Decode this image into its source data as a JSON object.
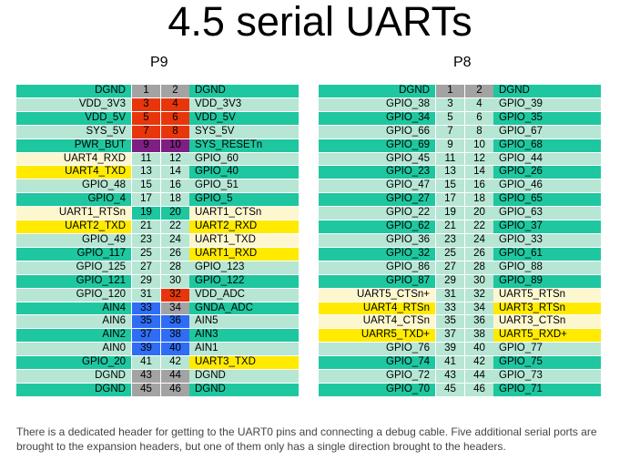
{
  "title": "4.5 serial UARTs",
  "headers": {
    "left": "P9",
    "right": "P8"
  },
  "colors": {
    "teal": "#1ec7a0",
    "mint": "#b7e6d4",
    "cream": "#fdf7cf",
    "yellow": "#ffea00",
    "gray": "#a3a3a3",
    "red": "#e8360c",
    "purple": "#7e1f84",
    "blue": "#2f6df5"
  },
  "p9": [
    {
      "l": "DGND",
      "a": "1",
      "b": "2",
      "r": "DGND",
      "lc": "teal",
      "ac": "gray",
      "bc": "gray",
      "rc": "teal"
    },
    {
      "l": "VDD_3V3",
      "a": "3",
      "b": "4",
      "r": "VDD_3V3",
      "lc": "mint",
      "ac": "red",
      "bc": "red",
      "rc": "mint"
    },
    {
      "l": "VDD_5V",
      "a": "5",
      "b": "6",
      "r": "VDD_5V",
      "lc": "teal",
      "ac": "red",
      "bc": "red",
      "rc": "teal"
    },
    {
      "l": "SYS_5V",
      "a": "7",
      "b": "8",
      "r": "SYS_5V",
      "lc": "mint",
      "ac": "red",
      "bc": "red",
      "rc": "mint"
    },
    {
      "l": "PWR_BUT",
      "a": "9",
      "b": "10",
      "r": "SYS_RESETn",
      "lc": "teal",
      "ac": "purple",
      "bc": "purple",
      "rc": "teal"
    },
    {
      "l": "UART4_RXD",
      "a": "11",
      "b": "12",
      "r": "GPIO_60",
      "lc": "cream",
      "ac": "mint",
      "bc": "mint",
      "rc": "mint"
    },
    {
      "l": "UART4_TXD",
      "a": "13",
      "b": "14",
      "r": "GPIO_40",
      "lc": "yellow",
      "ac": "mint",
      "bc": "mint",
      "rc": "teal"
    },
    {
      "l": "GPIO_48",
      "a": "15",
      "b": "16",
      "r": "GPIO_51",
      "lc": "mint",
      "ac": "mint",
      "bc": "mint",
      "rc": "mint"
    },
    {
      "l": "GPIO_4",
      "a": "17",
      "b": "18",
      "r": "GPIO_5",
      "lc": "teal",
      "ac": "mint",
      "bc": "mint",
      "rc": "teal"
    },
    {
      "l": "UART1_RTSn",
      "a": "19",
      "b": "20",
      "r": "UART1_CTSn",
      "lc": "cream",
      "ac": "teal",
      "bc": "teal",
      "rc": "cream"
    },
    {
      "l": "UART2_TXD",
      "a": "21",
      "b": "22",
      "r": "UART2_RXD",
      "lc": "yellow",
      "ac": "mint",
      "bc": "mint",
      "rc": "yellow"
    },
    {
      "l": "GPIO_49",
      "a": "23",
      "b": "24",
      "r": "UART1_TXD",
      "lc": "mint",
      "ac": "mint",
      "bc": "mint",
      "rc": "cream"
    },
    {
      "l": "GPIO_117",
      "a": "25",
      "b": "26",
      "r": "UART1_RXD",
      "lc": "teal",
      "ac": "mint",
      "bc": "mint",
      "rc": "yellow"
    },
    {
      "l": "GPIO_125",
      "a": "27",
      "b": "28",
      "r": "GPIO_123",
      "lc": "mint",
      "ac": "mint",
      "bc": "mint",
      "rc": "mint"
    },
    {
      "l": "GPIO_121",
      "a": "29",
      "b": "30",
      "r": "GPIO_122",
      "lc": "teal",
      "ac": "mint",
      "bc": "mint",
      "rc": "teal"
    },
    {
      "l": "GPIO_120",
      "a": "31",
      "b": "32",
      "r": "VDD_ADC",
      "lc": "mint",
      "ac": "mint",
      "bc": "red",
      "rc": "mint"
    },
    {
      "l": "AIN4",
      "a": "33",
      "b": "34",
      "r": "GNDA_ADC",
      "lc": "teal",
      "ac": "blue",
      "bc": "gray",
      "rc": "teal"
    },
    {
      "l": "AIN6",
      "a": "35",
      "b": "36",
      "r": "AIN5",
      "lc": "mint",
      "ac": "blue",
      "bc": "blue",
      "rc": "mint"
    },
    {
      "l": "AIN2",
      "a": "37",
      "b": "38",
      "r": "AIN3",
      "lc": "teal",
      "ac": "blue",
      "bc": "blue",
      "rc": "teal"
    },
    {
      "l": "AIN0",
      "a": "39",
      "b": "40",
      "r": "AIN1",
      "lc": "mint",
      "ac": "blue",
      "bc": "blue",
      "rc": "mint"
    },
    {
      "l": "GPIO_20",
      "a": "41",
      "b": "42",
      "r": "UART3_TXD",
      "lc": "teal",
      "ac": "mint",
      "bc": "mint",
      "rc": "yellow"
    },
    {
      "l": "DGND",
      "a": "43",
      "b": "44",
      "r": "DGND",
      "lc": "mint",
      "ac": "gray",
      "bc": "gray",
      "rc": "mint"
    },
    {
      "l": "DGND",
      "a": "45",
      "b": "46",
      "r": "DGND",
      "lc": "teal",
      "ac": "gray",
      "bc": "gray",
      "rc": "teal"
    }
  ],
  "p8": [
    {
      "l": "DGND",
      "a": "1",
      "b": "2",
      "r": "DGND",
      "lc": "teal",
      "ac": "gray",
      "bc": "gray",
      "rc": "teal"
    },
    {
      "l": "GPIO_38",
      "a": "3",
      "b": "4",
      "r": "GPIO_39",
      "lc": "mint",
      "ac": "mint",
      "bc": "mint",
      "rc": "mint"
    },
    {
      "l": "GPIO_34",
      "a": "5",
      "b": "6",
      "r": "GPIO_35",
      "lc": "teal",
      "ac": "mint",
      "bc": "mint",
      "rc": "teal"
    },
    {
      "l": "GPIO_66",
      "a": "7",
      "b": "8",
      "r": "GPIO_67",
      "lc": "mint",
      "ac": "mint",
      "bc": "mint",
      "rc": "mint"
    },
    {
      "l": "GPIO_69",
      "a": "9",
      "b": "10",
      "r": "GPIO_68",
      "lc": "teal",
      "ac": "mint",
      "bc": "mint",
      "rc": "teal"
    },
    {
      "l": "GPIO_45",
      "a": "11",
      "b": "12",
      "r": "GPIO_44",
      "lc": "mint",
      "ac": "mint",
      "bc": "mint",
      "rc": "mint"
    },
    {
      "l": "GPIO_23",
      "a": "13",
      "b": "14",
      "r": "GPIO_26",
      "lc": "teal",
      "ac": "mint",
      "bc": "mint",
      "rc": "teal"
    },
    {
      "l": "GPIO_47",
      "a": "15",
      "b": "16",
      "r": "GPIO_46",
      "lc": "mint",
      "ac": "mint",
      "bc": "mint",
      "rc": "mint"
    },
    {
      "l": "GPIO_27",
      "a": "17",
      "b": "18",
      "r": "GPIO_65",
      "lc": "teal",
      "ac": "mint",
      "bc": "mint",
      "rc": "teal"
    },
    {
      "l": "GPIO_22",
      "a": "19",
      "b": "20",
      "r": "GPIO_63",
      "lc": "mint",
      "ac": "mint",
      "bc": "mint",
      "rc": "mint"
    },
    {
      "l": "GPIO_62",
      "a": "21",
      "b": "22",
      "r": "GPIO_37",
      "lc": "teal",
      "ac": "mint",
      "bc": "mint",
      "rc": "teal"
    },
    {
      "l": "GPIO_36",
      "a": "23",
      "b": "24",
      "r": "GPIO_33",
      "lc": "mint",
      "ac": "mint",
      "bc": "mint",
      "rc": "mint"
    },
    {
      "l": "GPIO_32",
      "a": "25",
      "b": "26",
      "r": "GPIO_61",
      "lc": "teal",
      "ac": "mint",
      "bc": "mint",
      "rc": "teal"
    },
    {
      "l": "GPIO_86",
      "a": "27",
      "b": "28",
      "r": "GPIO_88",
      "lc": "mint",
      "ac": "mint",
      "bc": "mint",
      "rc": "mint"
    },
    {
      "l": "GPIO_87",
      "a": "29",
      "b": "30",
      "r": "GPIO_89",
      "lc": "teal",
      "ac": "mint",
      "bc": "mint",
      "rc": "teal"
    },
    {
      "l": "UART5_CTSn+",
      "a": "31",
      "b": "32",
      "r": "UART5_RTSn",
      "lc": "cream",
      "ac": "mint",
      "bc": "mint",
      "rc": "cream"
    },
    {
      "l": "UART4_RTSn",
      "a": "33",
      "b": "34",
      "r": "UART3_RTSn",
      "lc": "yellow",
      "ac": "mint",
      "bc": "mint",
      "rc": "yellow"
    },
    {
      "l": "UART4_CTSn",
      "a": "35",
      "b": "36",
      "r": "UART3_CTSn",
      "lc": "cream",
      "ac": "mint",
      "bc": "mint",
      "rc": "cream"
    },
    {
      "l": "UARR5_TXD+",
      "a": "37",
      "b": "38",
      "r": "UART5_RXD+",
      "lc": "yellow",
      "ac": "mint",
      "bc": "mint",
      "rc": "yellow"
    },
    {
      "l": "GPIO_76",
      "a": "39",
      "b": "40",
      "r": "GPIO_77",
      "lc": "mint",
      "ac": "mint",
      "bc": "mint",
      "rc": "mint"
    },
    {
      "l": "GPIO_74",
      "a": "41",
      "b": "42",
      "r": "GPIO_75",
      "lc": "teal",
      "ac": "mint",
      "bc": "mint",
      "rc": "teal"
    },
    {
      "l": "GPIO_72",
      "a": "43",
      "b": "44",
      "r": "GPIO_73",
      "lc": "mint",
      "ac": "mint",
      "bc": "mint",
      "rc": "mint"
    },
    {
      "l": "GPIO_70",
      "a": "45",
      "b": "46",
      "r": "GPIO_71",
      "lc": "teal",
      "ac": "mint",
      "bc": "mint",
      "rc": "teal"
    }
  ],
  "caption": "There is a dedicated header for getting to the UART0 pins and connecting a debug cable. Five additional serial ports are brought to the expansion headers, but one of them only has a single direction brought to the headers."
}
